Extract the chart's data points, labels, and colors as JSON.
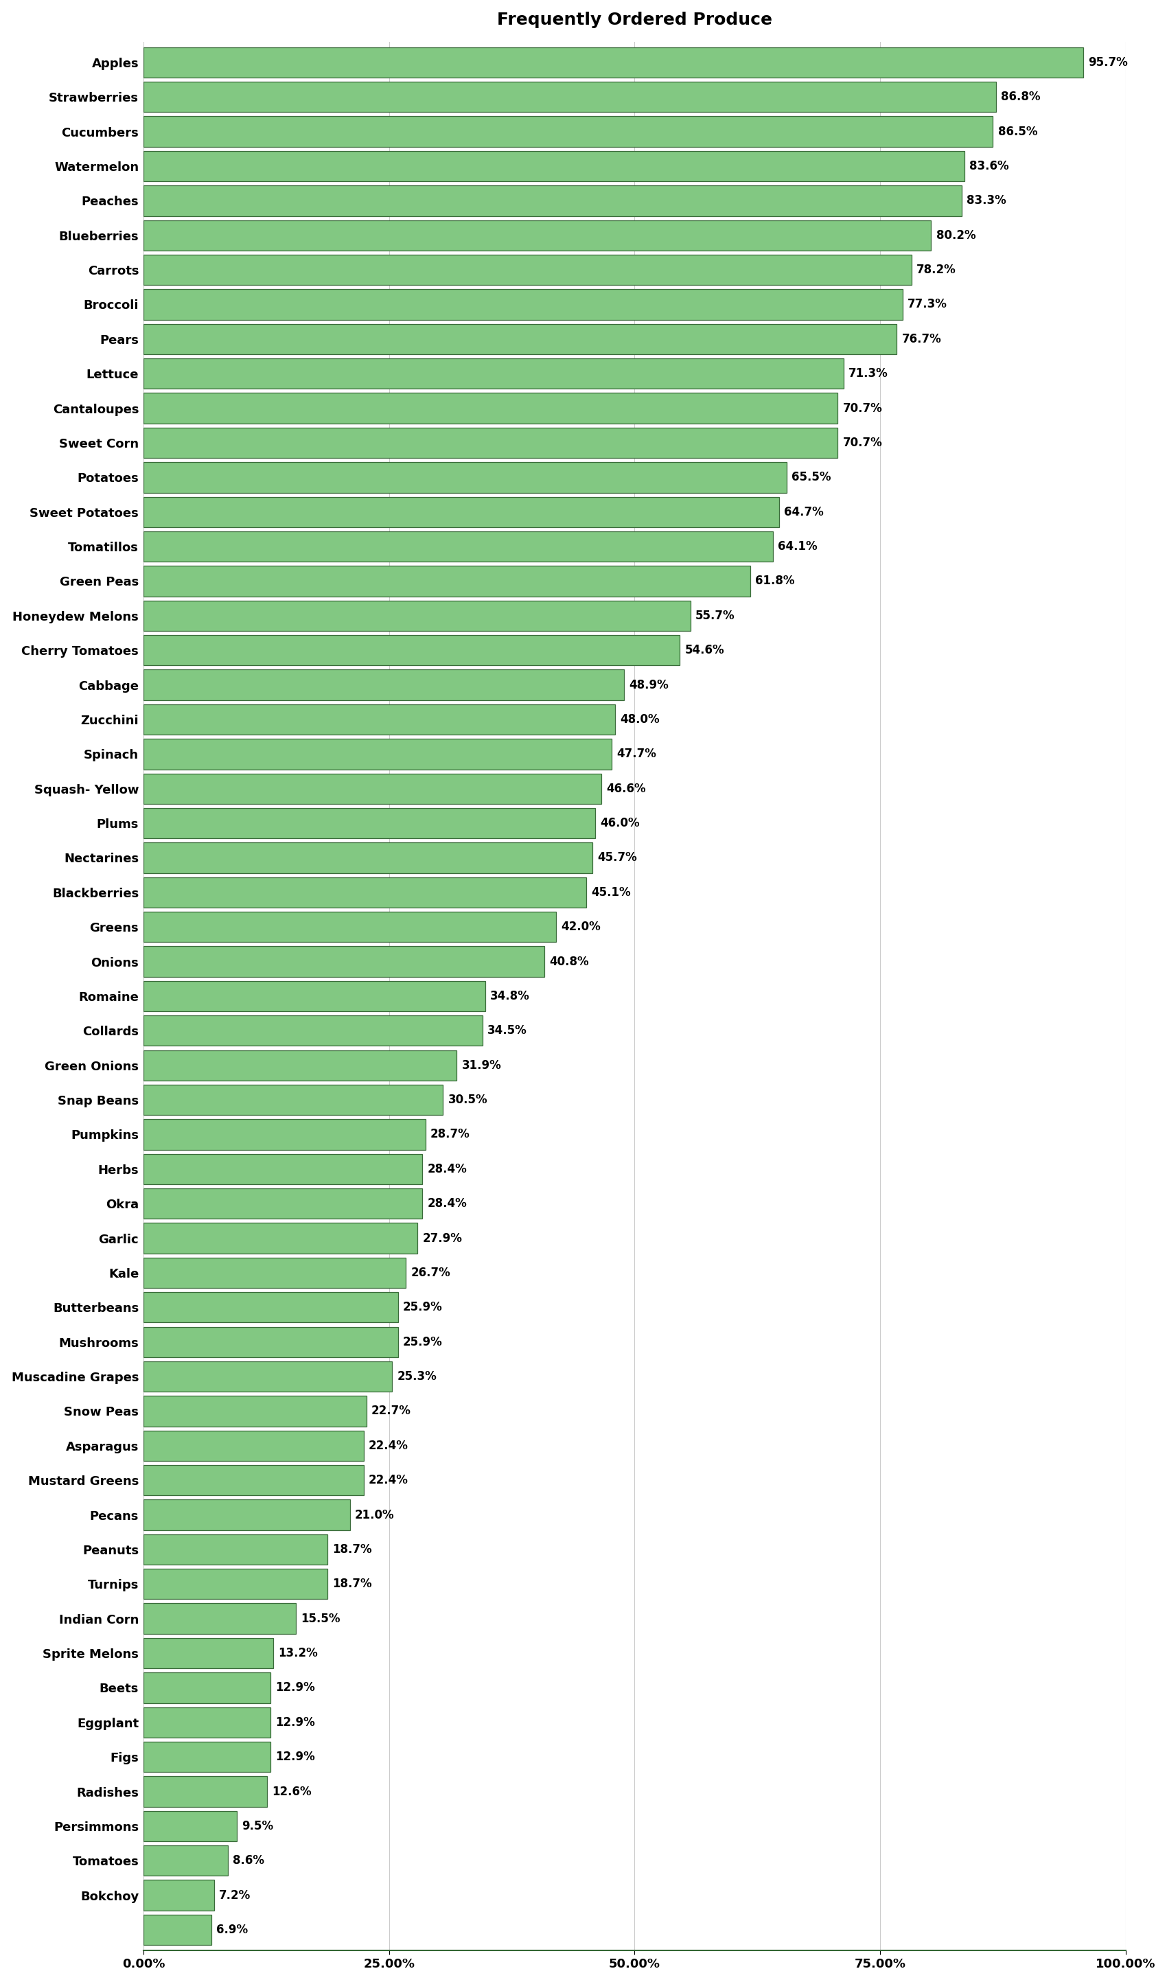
{
  "title": "Frequently Ordered Produce",
  "categories": [
    "Apples",
    "Strawberries",
    "Cucumbers",
    "Watermelon",
    "Peaches",
    "Blueberries",
    "Carrots",
    "Broccoli",
    "Pears",
    "Lettuce",
    "Cantaloupes",
    "Sweet Corn",
    "Potatoes",
    "Sweet Potatoes",
    "Tomatillos",
    "Green Peas",
    "Honeydew Melons",
    "Cherry Tomatoes",
    "Cabbage",
    "Zucchini",
    "Spinach",
    "Squash- Yellow",
    "Plums",
    "Nectarines",
    "Blackberries",
    "Greens",
    "Onions",
    "Romaine",
    "Collards",
    "Green Onions",
    "Snap Beans",
    "Pumpkins",
    "Herbs",
    "Okra",
    "Garlic",
    "Kale",
    "Butterbeans",
    "Mushrooms",
    "Muscadine Grapes",
    "Snow Peas",
    "Asparagus",
    "Mustard Greens",
    "Pecans",
    "Peanuts",
    "Turnips",
    "Indian Corn",
    "Sprite Melons",
    "Beets",
    "Eggplant",
    "Figs",
    "Radishes",
    "Persimmons",
    "Tomatoes",
    "Bokchoy",
    ""
  ],
  "values": [
    95.7,
    86.8,
    86.5,
    83.6,
    83.3,
    80.2,
    78.2,
    77.3,
    76.7,
    71.3,
    70.7,
    70.7,
    65.5,
    64.7,
    64.1,
    61.8,
    55.7,
    54.6,
    48.9,
    48.0,
    47.7,
    46.6,
    46.0,
    45.7,
    45.1,
    42.0,
    40.8,
    34.8,
    34.5,
    31.9,
    30.5,
    28.7,
    28.4,
    28.4,
    27.9,
    26.7,
    25.9,
    25.9,
    25.3,
    22.7,
    22.4,
    22.4,
    21.0,
    18.7,
    18.7,
    15.5,
    13.2,
    12.9,
    12.9,
    12.9,
    12.6,
    9.5,
    8.6,
    7.2,
    6.9
  ],
  "value_labels": [
    "95.7%",
    "86.8%",
    "86.5%",
    "83.6%",
    "83.3%",
    "80.2%",
    "78.2%",
    "77.3%",
    "76.7%",
    "71.3%",
    "70.7%",
    "70.7%",
    "65.5%",
    "64.7%",
    "64.1%",
    "61.8%",
    "55.7%",
    "54.6%",
    "48.9%",
    "48.0%",
    "47.7%",
    "46.6%",
    "46.0%",
    "45.7%",
    "45.1%",
    "42.0%",
    "40.8%",
    "34.8%",
    "34.5%",
    "31.9%",
    "30.5%",
    "28.7%",
    "28.4%",
    "28.4%",
    "27.9%",
    "26.7%",
    "25.9%",
    "25.9%",
    "25.3%",
    "22.7%",
    "22.4%",
    "22.4%",
    "21.0%",
    "18.7%",
    "18.7%",
    "15.5%",
    "13.2%",
    "12.9%",
    "12.9%",
    "12.9%",
    "12.6%",
    "9.5%",
    "8.6%",
    "7.2%",
    "6.9%"
  ],
  "bar_color": "#82C882",
  "bar_edge_color": "#3A6B3A",
  "background_color": "#FFFFFF",
  "title_fontsize": 18,
  "label_fontsize": 13,
  "value_fontsize": 12,
  "xlim": [
    0,
    100
  ],
  "xtick_labels": [
    "0.00%",
    "25.00%",
    "50.00%",
    "75.00%",
    "100.00%"
  ],
  "xtick_values": [
    0,
    25,
    50,
    75,
    100
  ]
}
